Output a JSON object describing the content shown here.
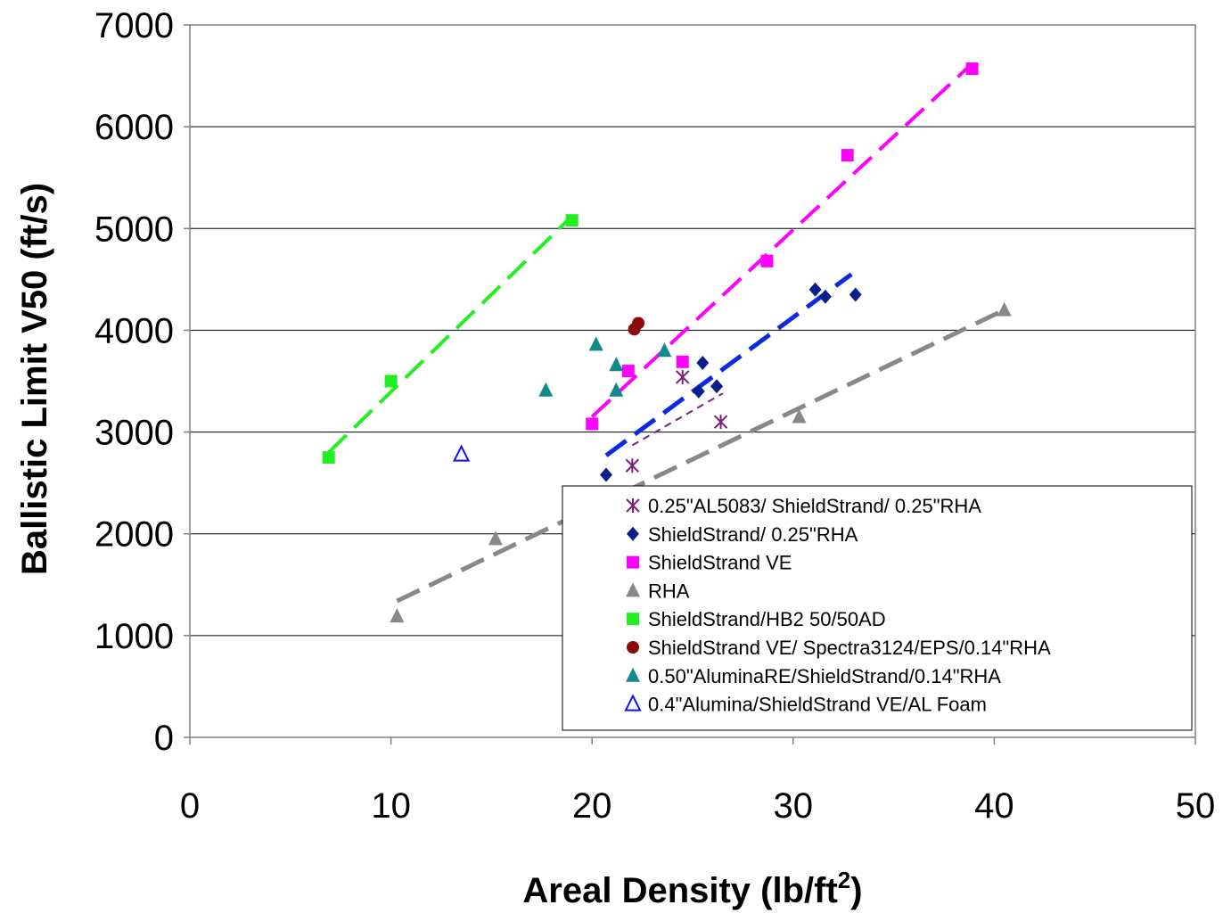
{
  "chart_data": {
    "type": "scatter",
    "title": "",
    "xlabel": "Areal Density (lb/ft",
    "xlabel_sup": "2",
    "xlabel_end": ")",
    "ylabel": "Ballistic Limit V50 (ft/s)",
    "xlim": [
      0,
      50
    ],
    "ylim": [
      0,
      7000
    ],
    "xticks": [
      "0",
      "10",
      "20",
      "30",
      "40",
      "50"
    ],
    "yticks": [
      "0",
      "1000",
      "2000",
      "3000",
      "4000",
      "5000",
      "6000",
      "7000"
    ],
    "grid": "horizontal",
    "legend_position": "bottom-right",
    "series": [
      {
        "name": "0.25\"AL5083/ ShieldStrand/ 0.25\"RHA",
        "marker": "asterisk",
        "color": "#7b1f7b",
        "points": [
          [
            22.0,
            2670
          ],
          [
            24.5,
            3540
          ],
          [
            26.4,
            3100
          ]
        ],
        "trend": {
          "from": [
            22.0,
            2870
          ],
          "to": [
            26.5,
            3380
          ],
          "dash": "8 6",
          "width": 2
        }
      },
      {
        "name": "ShieldStrand/ 0.25\"RHA",
        "marker": "diamond",
        "color": "#0a1f8c",
        "points": [
          [
            20.7,
            2580
          ],
          [
            25.3,
            3400
          ],
          [
            25.5,
            3680
          ],
          [
            26.2,
            3450
          ],
          [
            31.1,
            4400
          ],
          [
            31.6,
            4330
          ],
          [
            33.1,
            4350
          ]
        ],
        "trend": {
          "from": [
            20.7,
            2770
          ],
          "to": [
            32.9,
            4550
          ],
          "dash": "28 12",
          "width": 5,
          "color": "#0a2be0"
        }
      },
      {
        "name": "ShieldStrand VE",
        "marker": "square",
        "color": "#ff00ff",
        "points": [
          [
            20.0,
            3080
          ],
          [
            21.8,
            3600
          ],
          [
            24.5,
            3690
          ],
          [
            28.7,
            4680
          ],
          [
            32.7,
            5720
          ],
          [
            38.9,
            6570
          ]
        ],
        "trend": {
          "from": [
            20.0,
            3150
          ],
          "to": [
            38.9,
            6620
          ],
          "dash": "28 12",
          "width": 4
        }
      },
      {
        "name": "RHA",
        "marker": "triangle",
        "color": "#888888",
        "points": [
          [
            10.3,
            1190
          ],
          [
            15.2,
            1950
          ],
          [
            30.3,
            3150
          ],
          [
            40.5,
            4200
          ]
        ],
        "trend": {
          "from": [
            10.3,
            1340
          ],
          "to": [
            40.5,
            4200
          ],
          "dash": "28 12",
          "width": 5
        }
      },
      {
        "name": "ShieldStrand/HB2 50/50AD",
        "marker": "square",
        "color": "#22ee22",
        "points": [
          [
            6.9,
            2750
          ],
          [
            10.0,
            3500
          ],
          [
            19.0,
            5080
          ]
        ],
        "trend": {
          "from": [
            6.9,
            2800
          ],
          "to": [
            19.0,
            5120
          ],
          "dash": "28 12",
          "width": 4
        }
      },
      {
        "name": "ShieldStrand VE/ Spectra3124/EPS/0.14\"RHA",
        "marker": "circle",
        "color": "#8b0a0a",
        "points": [
          [
            22.1,
            4010
          ],
          [
            22.3,
            4070
          ]
        ]
      },
      {
        "name": "0.50\"AluminaRE/ShieldStrand/0.14\"RHA",
        "marker": "triangle",
        "color": "#138a8a",
        "points": [
          [
            17.7,
            3410
          ],
          [
            20.2,
            3860
          ],
          [
            21.2,
            3660
          ],
          [
            21.2,
            3410
          ],
          [
            23.6,
            3800
          ]
        ]
      },
      {
        "name": "0.4\"Alumina/ShieldStrand VE/AL Foam",
        "marker": "triangle-open",
        "color": "#1010ee",
        "points": [
          [
            13.5,
            2780
          ]
        ]
      }
    ]
  }
}
